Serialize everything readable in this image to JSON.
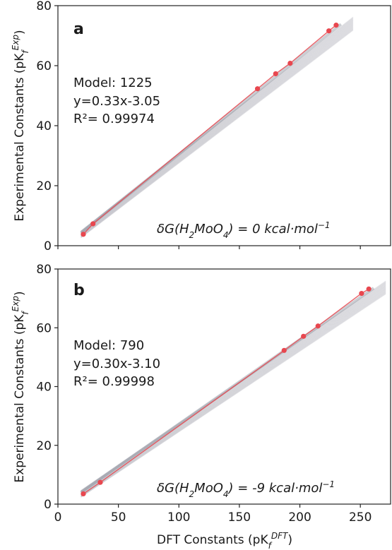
{
  "chart_data": [
    {
      "type": "scatter",
      "panel_label": "a",
      "annotation_lines": [
        "Model: 1225",
        "y=0.33x-3.05",
        "R²= 0.99974"
      ],
      "condition": {
        "prefix": "δG(H",
        "sub1": "2",
        "mid": "MoO",
        "sub2": "4",
        "suffix": ") = 0 kcal·mol",
        "sup": "−1"
      },
      "ylabel": {
        "main": "Experimental Constants (pK",
        "sub": "f",
        "sup": "Exp",
        "close": ")"
      },
      "ylim": [
        0,
        80
      ],
      "xlim": [
        0,
        275
      ],
      "yticks": [
        "0",
        "20",
        "40",
        "60",
        "80"
      ],
      "fit": {
        "slope": 0.33,
        "intercept": -3.05
      },
      "ensemble_color": "#8a8f99",
      "series": [
        {
          "color": "#e8474f",
          "x": [
            21,
            29,
            165,
            180,
            192,
            224,
            230
          ],
          "y": [
            3.8,
            7.3,
            52.3,
            57.3,
            60.8,
            71.6,
            73.5
          ]
        }
      ]
    },
    {
      "type": "scatter",
      "panel_label": "b",
      "annotation_lines": [
        "Model: 790",
        "y=0.30x-3.10",
        "R²= 0.99998"
      ],
      "condition": {
        "prefix": "δG(H",
        "sub1": "2",
        "mid": "MoO",
        "sub2": "4",
        "suffix": ") = -9 kcal·mol",
        "sup": "−1"
      },
      "ylabel": {
        "main": "Experimental Constants (pK",
        "sub": "f",
        "sup": "Exp",
        "close": ")"
      },
      "xlabel": {
        "main": "DFT Constants (pK",
        "sub": "f",
        "sup": "DFT",
        "close": ")"
      },
      "ylim": [
        0,
        80
      ],
      "xlim": [
        0,
        275
      ],
      "yticks": [
        "0",
        "20",
        "40",
        "60",
        "80"
      ],
      "xticks": [
        "0",
        "50",
        "100",
        "150",
        "200",
        "250"
      ],
      "fit": {
        "slope": 0.3,
        "intercept": -3.1
      },
      "ensemble_color": "#8a8f99",
      "series": [
        {
          "color": "#e8474f",
          "x": [
            21,
            35,
            187,
            203,
            215,
            251,
            257
          ],
          "y": [
            3.5,
            7.4,
            52.3,
            57.1,
            60.6,
            71.7,
            73.2
          ]
        }
      ]
    }
  ]
}
